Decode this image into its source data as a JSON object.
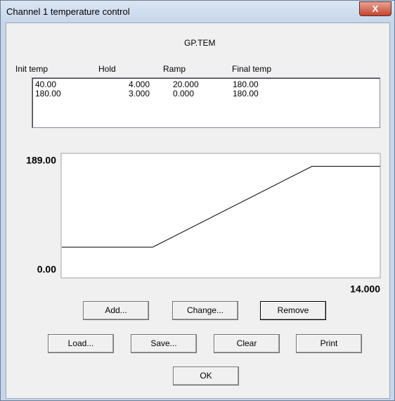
{
  "window": {
    "title": "Channel 1 temperature control"
  },
  "file": "GP.TEM",
  "table": {
    "columns": [
      "Init temp",
      "Hold",
      "Ramp",
      "Final temp"
    ],
    "rows": [
      [
        "40.00",
        "4.000",
        "20.000",
        "180.00"
      ],
      [
        "180.00",
        "3.000",
        "0.000",
        "180.00"
      ]
    ]
  },
  "chart": {
    "type": "line",
    "x": [
      0,
      4,
      11,
      14
    ],
    "y": [
      40,
      40,
      180,
      180
    ],
    "color": "#000000",
    "xlim": [
      0,
      14
    ],
    "ylim": [
      0,
      189
    ],
    "xticks": [
      {
        "value": 14,
        "label": "14.000"
      }
    ],
    "yticks": [
      {
        "value": 0,
        "label": "0.00"
      },
      {
        "value": 189,
        "label": "189.00"
      }
    ]
  },
  "buttons": {
    "row1": [
      "Add...",
      "Change...",
      "Remove"
    ],
    "row2": [
      "Load...",
      "Save...",
      "Clear",
      "Print"
    ],
    "ok": "OK"
  }
}
